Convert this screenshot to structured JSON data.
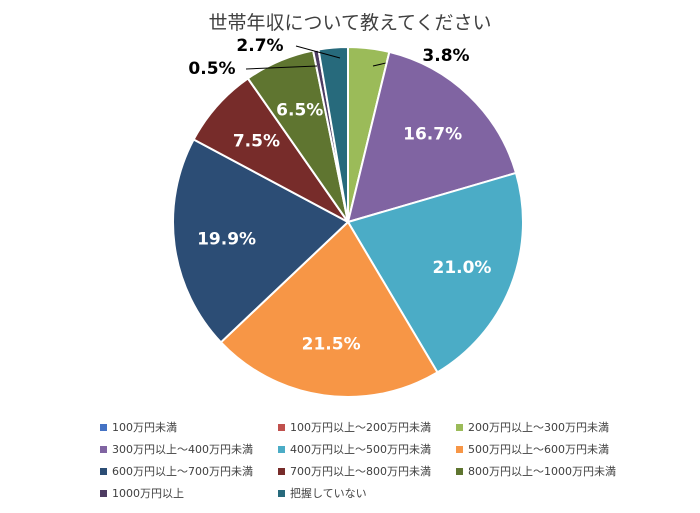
{
  "chart_data": {
    "type": "pie",
    "title": "世帯年収について教えてください",
    "slices": [
      {
        "label": "100万円未満",
        "value": 0.0,
        "text": "",
        "color": "#4472C4"
      },
      {
        "label": "100万円以上～200万円未満",
        "value": 0.0,
        "text": "",
        "color": "#C0504D"
      },
      {
        "label": "200万円以上～300万円未満",
        "value": 3.8,
        "text": "3.8%",
        "color": "#9BBB59"
      },
      {
        "label": "300万円以上～400万円未満",
        "value": 16.7,
        "text": "16.7%",
        "color": "#8064A2"
      },
      {
        "label": "400万円以上～500万円未満",
        "value": 21.0,
        "text": "21.0%",
        "color": "#4BACC6"
      },
      {
        "label": "500万円以上～600万円未満",
        "value": 21.5,
        "text": "21.5%",
        "color": "#F79646"
      },
      {
        "label": "600万円以上～700万円未満",
        "value": 19.9,
        "text": "19.9%",
        "color": "#2C4D75"
      },
      {
        "label": "700万円以上～800万円未満",
        "value": 7.5,
        "text": "7.5%",
        "color": "#772C2A"
      },
      {
        "label": "800万円以上～1000万円未満",
        "value": 6.5,
        "text": "6.5%",
        "color": "#5F7530"
      },
      {
        "label": "1000万円以上",
        "value": 0.5,
        "text": "0.5%",
        "color": "#4D3B62"
      },
      {
        "label": "把握していない",
        "value": 2.7,
        "text": "2.7%",
        "color": "#276A7C"
      }
    ],
    "legend_position": "bottom"
  }
}
